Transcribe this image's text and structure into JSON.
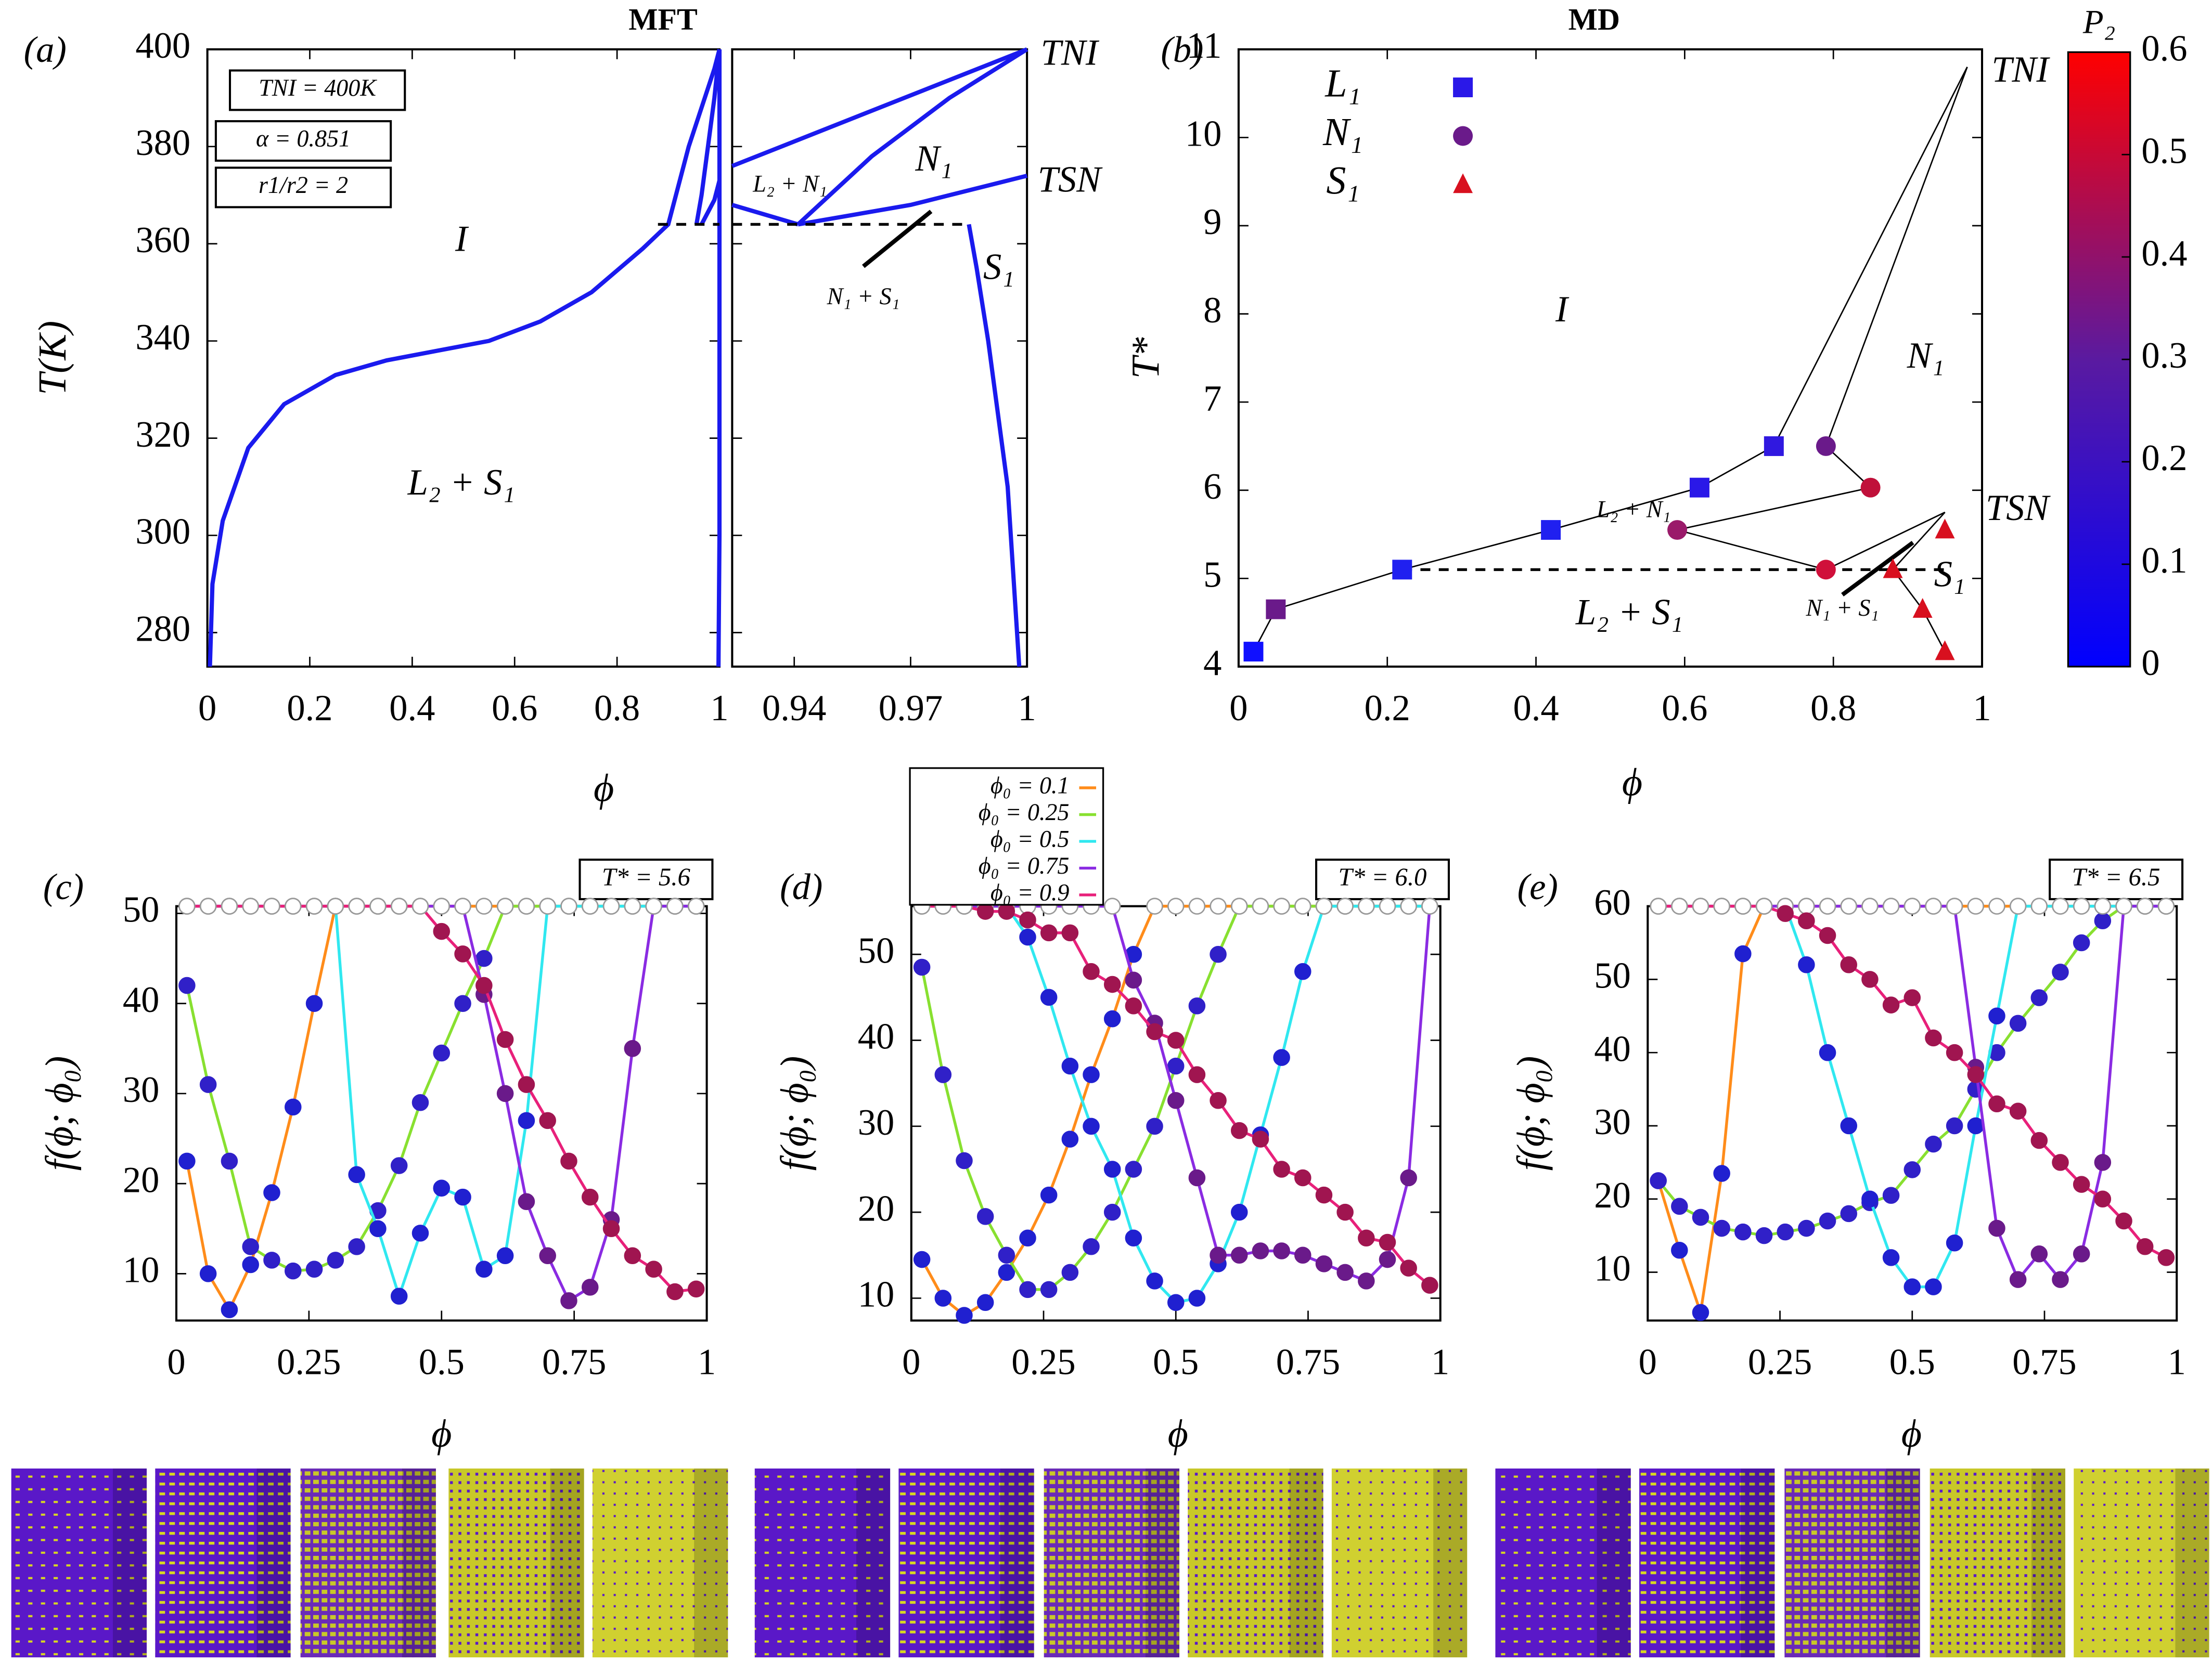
{
  "chart_data": [
    {
      "type": "line",
      "title": "MFT",
      "panel_label": "(a)",
      "xlabel": "ϕ",
      "ylabel": "T(K)",
      "xlim": [
        0,
        1
      ],
      "xticks": [
        0,
        0.2,
        0.4,
        0.6,
        0.8,
        1
      ],
      "ylim": [
        273,
        400
      ],
      "yticks": [
        280,
        300,
        320,
        340,
        360,
        380,
        400
      ],
      "series": [
        {
          "color": "#1a1aee",
          "x": [
            0.005,
            0.01,
            0.03,
            0.08,
            0.15,
            0.25,
            0.35,
            0.45,
            0.55,
            0.65,
            0.75,
            0.85,
            0.9,
            0.94,
            0.99,
            1
          ],
          "values": [
            273,
            290,
            303,
            318,
            327,
            333,
            336,
            338,
            340,
            344,
            350,
            359,
            364,
            380,
            396,
            400
          ]
        },
        {
          "color": "#1a1aee",
          "x": [
            0.955,
            0.965,
            0.99,
            1
          ],
          "values": [
            364,
            370,
            390,
            400
          ]
        },
        {
          "color": "#1a1aee",
          "x": [
            0.965,
            0.99,
            1
          ],
          "values": [
            364,
            369,
            373
          ]
        },
        {
          "color": "#1a1aee",
          "x": [
            0.998,
            1,
            1
          ],
          "values": [
            273,
            300,
            400
          ]
        },
        {
          "color": "#000000",
          "dash": true,
          "x": [
            0.88,
            1
          ],
          "values": [
            364,
            364
          ]
        }
      ],
      "annotations": [
        "TNI = 400K",
        "α = 0.851",
        "r1/r2 = 2",
        "I",
        "L₂ + S₁"
      ]
    },
    {
      "type": "line",
      "xlim": [
        0.924,
        1
      ],
      "xticks": [
        0.94,
        0.97,
        1
      ],
      "ylim": [
        273,
        400
      ],
      "yticks": [
        280,
        300,
        320,
        340,
        360,
        380,
        400
      ],
      "series": [
        {
          "color": "#1a1aee",
          "x": [
            0.924,
            1
          ],
          "values": [
            376,
            400
          ]
        },
        {
          "color": "#1a1aee",
          "x": [
            0.924,
            0.941
          ],
          "values": [
            368,
            364
          ]
        },
        {
          "color": "#1a1aee",
          "x": [
            0.941,
            0.96,
            0.98,
            1
          ],
          "values": [
            364,
            378,
            390,
            400
          ]
        },
        {
          "color": "#1a1aee",
          "x": [
            0.941,
            0.97,
            1
          ],
          "values": [
            364,
            368,
            374
          ]
        },
        {
          "color": "#1a1aee",
          "x": [
            0.985,
            0.987,
            0.99,
            0.995,
            0.998
          ],
          "values": [
            364,
            355,
            340,
            310,
            273
          ]
        },
        {
          "color": "#000000",
          "dash": true,
          "x": [
            0.924,
            0.985
          ],
          "values": [
            364,
            364
          ]
        }
      ],
      "annotations": [
        "TNI",
        "TSN",
        "N₁",
        "L₂ + N₁",
        "N₁ + S₁",
        "S₁"
      ]
    },
    {
      "type": "scatter",
      "title": "MD",
      "panel_label": "(b)",
      "xlabel": "ϕ",
      "ylabel": "T*",
      "xlim": [
        0,
        1
      ],
      "xticks": [
        0,
        0.2,
        0.4,
        0.6,
        0.8,
        1
      ],
      "ylim": [
        4,
        11
      ],
      "yticks": [
        4,
        5,
        6,
        7,
        8,
        9,
        10,
        11
      ],
      "series": [
        {
          "name": "L₁",
          "marker": "square",
          "legend_color": "#2a18e8",
          "x": [
            0.02,
            0.05,
            0.22,
            0.42,
            0.62,
            0.72
          ],
          "values": [
            4.17,
            4.65,
            5.1,
            5.55,
            6.03,
            6.5
          ],
          "colors": [
            "#1010ff",
            "#6a1a8a",
            "#2020f0",
            "#2020f0",
            "#2a18e8",
            "#3018e0"
          ]
        },
        {
          "name": "N₁",
          "marker": "circle",
          "legend_color": "#6a1a8a",
          "x": [
            0.59,
            0.79,
            0.85,
            0.79
          ],
          "values": [
            5.55,
            6.5,
            6.03,
            5.1
          ],
          "colors": [
            "#9a1a6a",
            "#6a1a8a",
            "#c0103a",
            "#d0103a"
          ]
        },
        {
          "name": "S₁",
          "marker": "triangle",
          "legend_color": "#d8101f",
          "x": [
            0.88,
            0.95,
            0.92,
            0.95
          ],
          "values": [
            5.1,
            5.55,
            4.65,
            4.17
          ],
          "colors": [
            "#d8101f",
            "#d8101f",
            "#d8101f",
            "#d8101f"
          ]
        }
      ],
      "lines": [
        {
          "x": [
            0.02,
            0.05,
            0.22,
            0.42,
            0.62,
            0.72,
            0.98
          ],
          "values": [
            4.17,
            4.65,
            5.1,
            5.55,
            6.03,
            6.5,
            10.8
          ]
        },
        {
          "x": [
            0.79,
            0.98
          ],
          "values": [
            6.5,
            10.8
          ]
        },
        {
          "x": [
            0.79,
            0.85
          ],
          "values": [
            6.5,
            6.03
          ]
        },
        {
          "x": [
            0.59,
            0.85
          ],
          "values": [
            5.55,
            6.03
          ]
        },
        {
          "x": [
            0.59,
            0.79,
            0.95
          ],
          "values": [
            5.55,
            5.1,
            5.75
          ]
        },
        {
          "x": [
            0.88,
            0.95
          ],
          "values": [
            5.1,
            5.75
          ]
        },
        {
          "x": [
            0.88,
            0.92,
            0.95
          ],
          "values": [
            5.1,
            4.65,
            4.17
          ]
        },
        {
          "dash": true,
          "x": [
            0.22,
            0.95
          ],
          "values": [
            5.1,
            5.1
          ]
        }
      ],
      "colorbar": {
        "label": "P₂",
        "lim": [
          0,
          0.6
        ],
        "ticks": [
          0,
          0.1,
          0.2,
          0.3,
          0.4,
          0.5,
          0.6
        ],
        "colors": [
          "#0000ff",
          "#5a1aa0",
          "#ff0000"
        ]
      },
      "annotations": [
        "I",
        "N₁",
        "TNI",
        "TSN",
        "S₁",
        "L₂ + N₁",
        "N₁ + S₁",
        "L₂ + S₁"
      ]
    },
    {
      "type": "line",
      "panel_label": "(c)",
      "xlabel": "ϕ",
      "ylabel": "f(ϕ; ϕ₀)",
      "label_box": "T* = 5.6",
      "xlim": [
        0,
        1
      ],
      "xticks": [
        0,
        0.25,
        0.5,
        0.75,
        1
      ],
      "ylim": [
        4.8,
        50.8
      ],
      "yticks": [
        10,
        20,
        30,
        40,
        50
      ],
      "x": [
        0.02,
        0.06,
        0.1,
        0.14,
        0.18,
        0.22,
        0.26,
        0.3,
        0.34,
        0.38,
        0.42,
        0.46,
        0.5,
        0.54,
        0.58,
        0.62,
        0.66,
        0.7,
        0.74,
        0.78,
        0.82,
        0.86,
        0.9,
        0.94,
        0.98
      ],
      "series": [
        {
          "color": "#ff8c1a",
          "marker_color": "#2020d0",
          "values": [
            22.5,
            10,
            6,
            11,
            19,
            28.5,
            40,
            50.8,
            50.8,
            50.8,
            50.8,
            50.8,
            50.8,
            50.8,
            50.8,
            50.8,
            50.8,
            50.8,
            50.8,
            50.8,
            50.8,
            50.8,
            50.8,
            50.8,
            50.8
          ]
        },
        {
          "color": "#88e030",
          "marker_color": "#3020c8",
          "values": [
            42,
            31,
            22.5,
            13,
            11.5,
            10.3,
            10.5,
            11.5,
            13,
            17,
            22,
            29,
            34.5,
            40,
            45,
            50.8,
            50.8,
            50.8,
            50.8,
            50.8,
            50.8,
            50.8,
            50.8,
            50.8,
            50.8
          ]
        },
        {
          "color": "#30e8f0",
          "marker_color": "#2020d0",
          "values": [
            50.8,
            50.8,
            50.8,
            50.8,
            50.8,
            50.8,
            50.8,
            50.8,
            21,
            15,
            7.5,
            14.5,
            19.5,
            18.5,
            10.5,
            12,
            27,
            50.8,
            50.8,
            50.8,
            50.8,
            50.8,
            50.8,
            50.8,
            50.8
          ]
        },
        {
          "color": "#8a2be2",
          "marker_color": "#6a1a8a",
          "values": [
            50.8,
            50.8,
            50.8,
            50.8,
            50.8,
            50.8,
            50.8,
            50.8,
            50.8,
            50.8,
            50.8,
            50.8,
            50.8,
            50.8,
            41,
            30,
            18,
            12,
            7,
            8.5,
            16,
            35,
            50.8,
            50.8,
            50.8
          ]
        },
        {
          "color": "#e8207a",
          "marker_color": "#a01550",
          "values": [
            50.8,
            50.8,
            50.8,
            50.8,
            50.8,
            50.8,
            50.8,
            50.8,
            50.8,
            50.8,
            50.8,
            50.8,
            48,
            45.5,
            42,
            36,
            31,
            27,
            22.5,
            18.5,
            15,
            12,
            10.5,
            8,
            8.3
          ]
        }
      ]
    },
    {
      "type": "line",
      "panel_label": "(d)",
      "xlabel": "ϕ",
      "ylabel": "f(ϕ; ϕ₀)",
      "label_box": "T* = 6.0",
      "legend": true,
      "xlim": [
        0,
        1
      ],
      "xticks": [
        0,
        0.25,
        0.5,
        0.75,
        1
      ],
      "ylim": [
        7.4,
        55.6
      ],
      "yticks": [
        10,
        20,
        30,
        40,
        50
      ],
      "x": [
        0.02,
        0.06,
        0.1,
        0.14,
        0.18,
        0.22,
        0.26,
        0.3,
        0.34,
        0.38,
        0.42,
        0.46,
        0.5,
        0.54,
        0.58,
        0.62,
        0.66,
        0.7,
        0.74,
        0.78,
        0.82,
        0.86,
        0.9,
        0.94,
        0.98
      ],
      "series": [
        {
          "name": "ϕ₀ = 0.1",
          "color": "#ff8c1a",
          "marker_color": "#2020d0",
          "values": [
            14.5,
            10,
            8,
            9.5,
            13,
            17,
            22,
            28.5,
            36,
            42.5,
            50,
            55.6,
            55.6,
            55.6,
            55.6,
            55.6,
            55.6,
            55.6,
            55.6,
            55.6,
            55.6,
            55.6,
            55.6,
            55.6,
            55.6
          ]
        },
        {
          "name": "ϕ₀ = 0.25",
          "color": "#88e030",
          "marker_color": "#3020c8",
          "values": [
            48.5,
            36,
            26,
            19.5,
            15,
            11,
            11,
            13,
            16,
            20,
            25,
            30,
            37,
            44,
            50,
            55.6,
            55.6,
            55.6,
            55.6,
            55.6,
            55.6,
            55.6,
            55.6,
            55.6,
            55.6
          ]
        },
        {
          "name": "ϕ₀ = 0.5",
          "color": "#30e8f0",
          "marker_color": "#2020d0",
          "values": [
            55.6,
            55.6,
            55.6,
            55.6,
            55.6,
            52,
            45,
            37,
            30,
            25,
            17,
            12,
            9.5,
            10,
            14,
            20,
            29,
            38,
            48,
            55.6,
            55.6,
            55.6,
            55.6,
            55.6,
            55.6
          ]
        },
        {
          "name": "ϕ₀ = 0.75",
          "color": "#8a2be2",
          "marker_color": "#6a1a8a",
          "values": [
            55.6,
            55.6,
            55.6,
            55.6,
            55.6,
            55.6,
            55.6,
            55.6,
            55.6,
            55.6,
            47,
            42,
            33,
            24,
            15,
            15,
            15.5,
            15.5,
            15,
            14,
            13,
            12,
            14.5,
            24,
            55.6
          ]
        },
        {
          "name": "ϕ₀ = 0.9",
          "color": "#e8207a",
          "marker_color": "#a01550",
          "values": [
            55.6,
            55.6,
            55.6,
            55,
            55,
            54,
            52.5,
            52.5,
            48,
            46.5,
            44,
            41,
            40,
            36,
            33,
            29.5,
            28.5,
            25,
            24,
            22,
            20,
            17,
            16.5,
            13.5,
            11.5
          ]
        }
      ]
    },
    {
      "type": "line",
      "panel_label": "(e)",
      "xlabel": "ϕ",
      "ylabel": "f(ϕ; ϕ₀)",
      "label_box": "T* = 6.5",
      "xlim": [
        0,
        1
      ],
      "xticks": [
        0,
        0.25,
        0.5,
        0.75,
        1
      ],
      "ylim": [
        3.4,
        60
      ],
      "yticks": [
        10,
        20,
        30,
        40,
        50,
        60
      ],
      "x": [
        0.02,
        0.06,
        0.1,
        0.14,
        0.18,
        0.22,
        0.26,
        0.3,
        0.34,
        0.38,
        0.42,
        0.46,
        0.5,
        0.54,
        0.58,
        0.62,
        0.66,
        0.7,
        0.74,
        0.78,
        0.82,
        0.86,
        0.9,
        0.94,
        0.98
      ],
      "series": [
        {
          "color": "#ff8c1a",
          "marker_color": "#2020d0",
          "values": [
            22.5,
            13,
            4.5,
            23.5,
            53.5,
            60,
            60,
            60,
            60,
            60,
            60,
            60,
            60,
            60,
            60,
            60,
            60,
            60,
            60,
            60,
            60,
            60,
            60,
            60,
            60
          ]
        },
        {
          "color": "#88e030",
          "marker_color": "#3020c8",
          "values": [
            22.5,
            19,
            17.5,
            16,
            15.5,
            15,
            15.5,
            16,
            17,
            18,
            19.5,
            20.5,
            24,
            27.5,
            30,
            35,
            40,
            44,
            47.5,
            51,
            55,
            58,
            60,
            60,
            60
          ]
        },
        {
          "color": "#30e8f0",
          "marker_color": "#2020d0",
          "values": [
            60,
            60,
            60,
            60,
            60,
            60,
            60,
            52,
            40,
            30,
            20,
            12,
            8,
            8,
            14,
            30,
            45,
            60,
            60,
            60,
            60,
            60,
            60,
            60,
            60
          ]
        },
        {
          "color": "#8a2be2",
          "marker_color": "#6a1a8a",
          "values": [
            60,
            60,
            60,
            60,
            60,
            60,
            60,
            60,
            60,
            60,
            60,
            60,
            60,
            60,
            60,
            38,
            16,
            9,
            12.5,
            9,
            12.5,
            25,
            60,
            60,
            60
          ]
        },
        {
          "color": "#e8207a",
          "marker_color": "#a01550",
          "values": [
            60,
            60,
            60,
            60,
            60,
            60,
            59,
            58,
            56,
            52,
            50,
            46.5,
            47.5,
            42,
            40,
            37,
            33,
            32,
            28,
            25,
            22,
            20,
            17,
            13.5,
            12
          ]
        }
      ]
    }
  ]
}
